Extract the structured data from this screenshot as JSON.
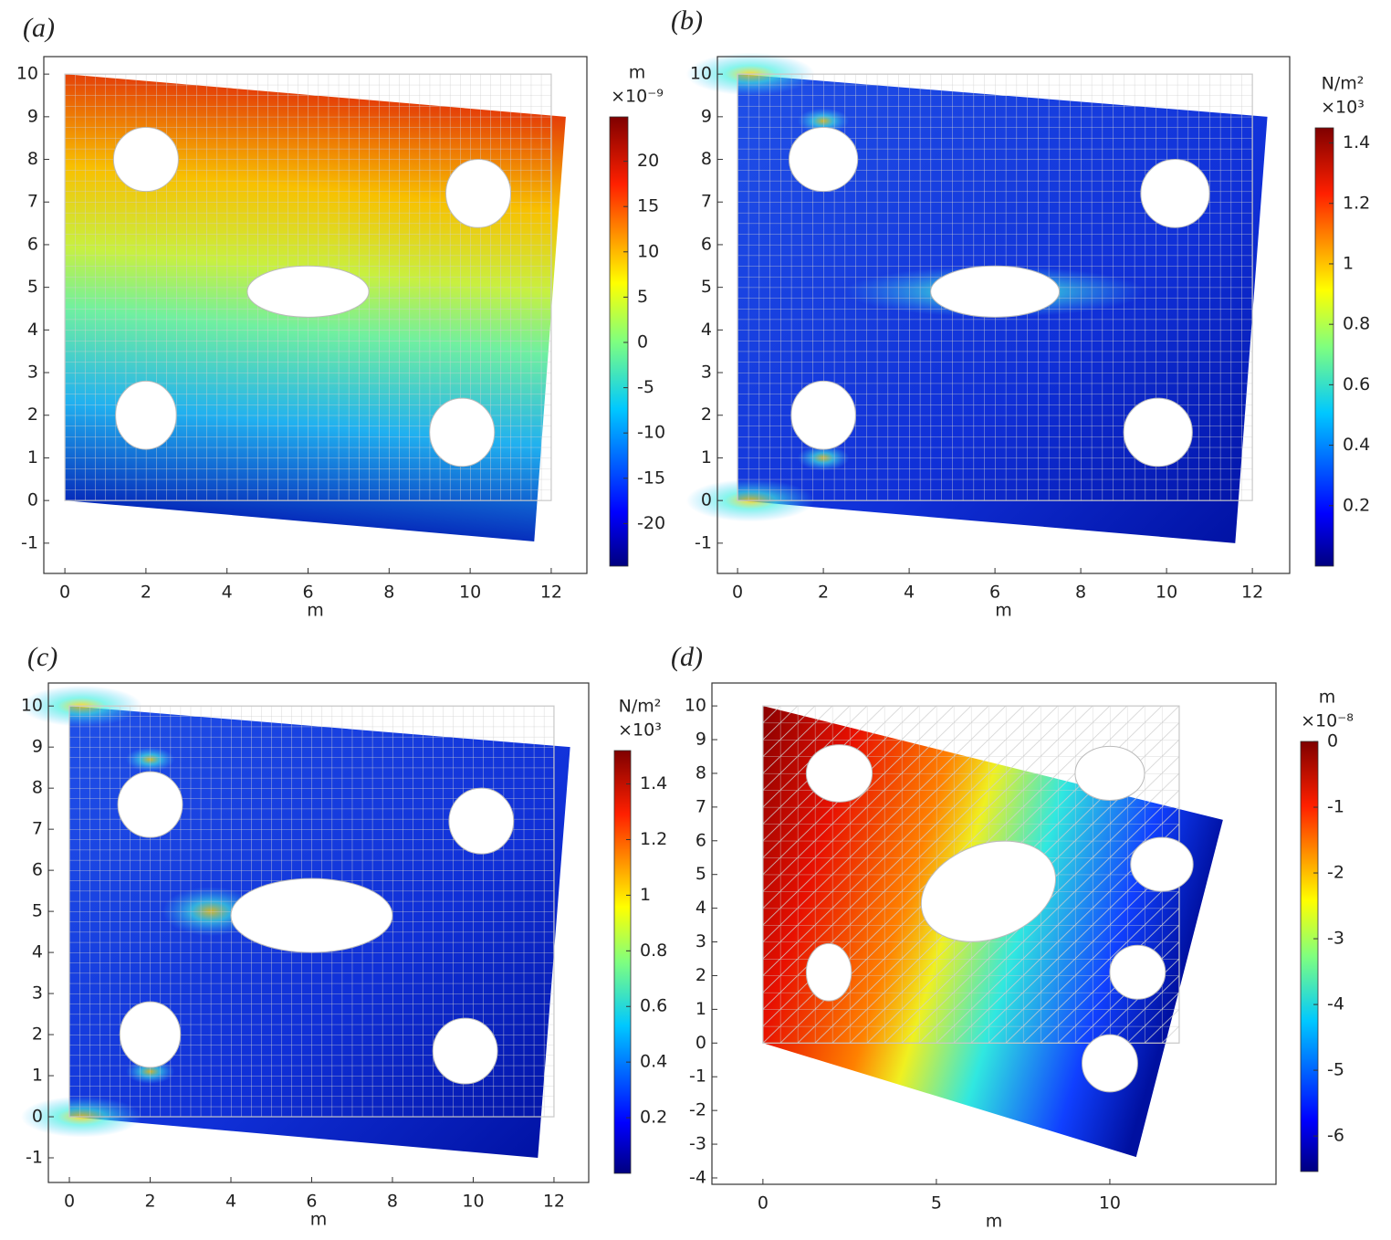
{
  "chart_data": [
    {
      "type": "surface",
      "panel_label": "(a)",
      "xlabel": "m",
      "xlim": [
        -0.52,
        12.88
      ],
      "xticks": [
        0,
        2,
        4,
        6,
        8,
        10,
        12
      ],
      "ylim": [
        -1.71,
        10.41
      ],
      "yticks": [
        -1,
        0,
        1,
        2,
        3,
        4,
        5,
        6,
        7,
        8,
        9,
        10
      ],
      "colorbar": {
        "title": "m",
        "exponent": "×10⁻⁹",
        "lim": [
          -24.7,
          24.9
        ],
        "ticks": [
          -20,
          -15,
          -10,
          -5,
          0,
          5,
          10,
          15,
          20
        ]
      }
    },
    {
      "type": "surface",
      "panel_label": "(b)",
      "xlabel": "m",
      "xlim": [
        -0.47,
        12.87
      ],
      "xticks": [
        0,
        2,
        4,
        6,
        8,
        10,
        12
      ],
      "ylim": [
        -1.71,
        10.41
      ],
      "yticks": [
        -1,
        0,
        1,
        2,
        3,
        4,
        5,
        6,
        7,
        8,
        9,
        10
      ],
      "colorbar": {
        "title": "N/m²",
        "exponent": "×10³",
        "lim": [
          0,
          1.45
        ],
        "ticks": [
          0.2,
          0.4,
          0.6,
          0.8,
          1,
          1.2,
          1.4
        ]
      }
    },
    {
      "type": "surface",
      "panel_label": "(c)",
      "xlabel": "m",
      "xlim": [
        -0.52,
        12.86
      ],
      "xticks": [
        0,
        2,
        4,
        6,
        8,
        10,
        12
      ],
      "ylim": [
        -1.6,
        10.56
      ],
      "yticks": [
        -1,
        0,
        1,
        2,
        3,
        4,
        5,
        6,
        7,
        8,
        9,
        10
      ],
      "colorbar": {
        "title": "N/m²",
        "exponent": "×10³",
        "lim": [
          0,
          1.52
        ],
        "ticks": [
          0.2,
          0.4,
          0.6,
          0.8,
          1,
          1.2,
          1.4
        ]
      }
    },
    {
      "type": "surface",
      "panel_label": "(d)",
      "xlabel": "m",
      "xlim": [
        -1.47,
        14.79
      ],
      "xticks": [
        0,
        5,
        10
      ],
      "ylim": [
        -4.19,
        10.68
      ],
      "yticks": [
        -4,
        -3,
        -2,
        -1,
        0,
        1,
        2,
        3,
        4,
        5,
        6,
        7,
        8,
        9,
        10
      ],
      "colorbar": {
        "title": "m",
        "exponent": "×10⁻⁸",
        "lim": [
          -6.54,
          0
        ],
        "ticks": [
          -6,
          -5,
          -4,
          -3,
          -2,
          -1,
          0
        ]
      }
    }
  ]
}
